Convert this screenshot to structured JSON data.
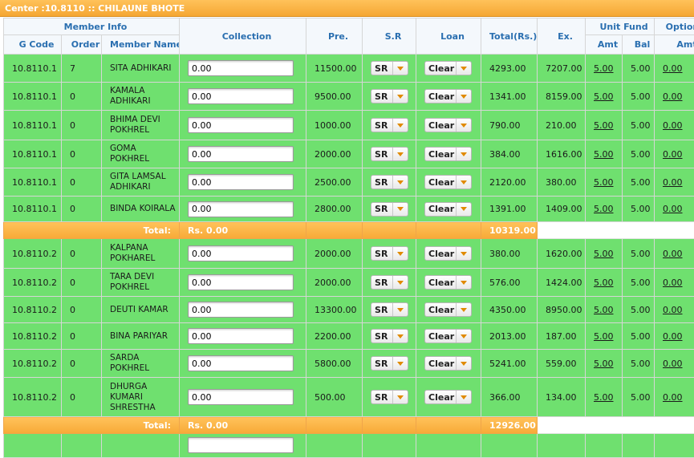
{
  "header": {
    "title": "Center :10.8110 :: CHILAUNE BHOTE"
  },
  "columns": {
    "member_info": "Member Info",
    "g_code": "G Code",
    "order": "Order",
    "member_name": "Member Name",
    "collection": "Collection",
    "pre": "Pre.",
    "sr": "S.R",
    "loan": "Loan",
    "total": "Total(Rs.)",
    "ex": "Ex.",
    "unit_fund": "Unit Fund",
    "amt": "Amt",
    "bal": "Bal",
    "optional": "Optional",
    "opt_amt": "Amt"
  },
  "groups": [
    {
      "rows": [
        {
          "gcode": "10.8110.1",
          "order": "7",
          "name": "SITA ADHIKARI",
          "collection": "0.00",
          "pre": "11500.00",
          "sr": "SR",
          "loan": "Clear",
          "total": "4293.00",
          "ex": "7207.00",
          "uf_amt": "5.00",
          "uf_bal": "5.00",
          "opt_amt": "0.00"
        },
        {
          "gcode": "10.8110.1",
          "order": "0",
          "name": "KAMALA ADHIKARI",
          "collection": "0.00",
          "pre": "9500.00",
          "sr": "SR",
          "loan": "Clear",
          "total": "1341.00",
          "ex": "8159.00",
          "uf_amt": "5.00",
          "uf_bal": "5.00",
          "opt_amt": "0.00"
        },
        {
          "gcode": "10.8110.1",
          "order": "0",
          "name": "BHIMA DEVI POKHREL",
          "collection": "0.00",
          "pre": "1000.00",
          "sr": "SR",
          "loan": "Clear",
          "total": "790.00",
          "ex": "210.00",
          "uf_amt": "5.00",
          "uf_bal": "5.00",
          "opt_amt": "0.00"
        },
        {
          "gcode": "10.8110.1",
          "order": "0",
          "name": "GOMA POKHREL",
          "collection": "0.00",
          "pre": "2000.00",
          "sr": "SR",
          "loan": "Clear",
          "total": "384.00",
          "ex": "1616.00",
          "uf_amt": "5.00",
          "uf_bal": "5.00",
          "opt_amt": "0.00"
        },
        {
          "gcode": "10.8110.1",
          "order": "0",
          "name": "GITA LAMSAL ADHIKARI",
          "collection": "0.00",
          "pre": "2500.00",
          "sr": "SR",
          "loan": "Clear",
          "total": "2120.00",
          "ex": "380.00",
          "uf_amt": "5.00",
          "uf_bal": "5.00",
          "opt_amt": "0.00"
        },
        {
          "gcode": "10.8110.1",
          "order": "0",
          "name": "BINDA KOIRALA",
          "collection": "0.00",
          "pre": "2800.00",
          "sr": "SR",
          "loan": "Clear",
          "total": "1391.00",
          "ex": "1409.00",
          "uf_amt": "5.00",
          "uf_bal": "5.00",
          "opt_amt": "0.00"
        }
      ],
      "total": {
        "label": "Total:",
        "collection": "Rs. 0.00",
        "total": "10319.00"
      }
    },
    {
      "rows": [
        {
          "gcode": "10.8110.2",
          "order": "0",
          "name": "KALPANA POKHAREL",
          "collection": "0.00",
          "pre": "2000.00",
          "sr": "SR",
          "loan": "Clear",
          "total": "380.00",
          "ex": "1620.00",
          "uf_amt": "5.00",
          "uf_bal": "5.00",
          "opt_amt": "0.00"
        },
        {
          "gcode": "10.8110.2",
          "order": "0",
          "name": "TARA DEVI POKHREL",
          "collection": "0.00",
          "pre": "2000.00",
          "sr": "SR",
          "loan": "Clear",
          "total": "576.00",
          "ex": "1424.00",
          "uf_amt": "5.00",
          "uf_bal": "5.00",
          "opt_amt": "0.00"
        },
        {
          "gcode": "10.8110.2",
          "order": "0",
          "name": "DEUTI KAMAR",
          "collection": "0.00",
          "pre": "13300.00",
          "sr": "SR",
          "loan": "Clear",
          "total": "4350.00",
          "ex": "8950.00",
          "uf_amt": "5.00",
          "uf_bal": "5.00",
          "opt_amt": "0.00"
        },
        {
          "gcode": "10.8110.2",
          "order": "0",
          "name": "BINA PARIYAR",
          "collection": "0.00",
          "pre": "2200.00",
          "sr": "SR",
          "loan": "Clear",
          "total": "2013.00",
          "ex": "187.00",
          "uf_amt": "5.00",
          "uf_bal": "5.00",
          "opt_amt": "0.00"
        },
        {
          "gcode": "10.8110.2",
          "order": "0",
          "name": "SARDA POKHREL",
          "collection": "0.00",
          "pre": "5800.00",
          "sr": "SR",
          "loan": "Clear",
          "total": "5241.00",
          "ex": "559.00",
          "uf_amt": "5.00",
          "uf_bal": "5.00",
          "opt_amt": "0.00"
        },
        {
          "gcode": "10.8110.2",
          "order": "0",
          "name": "DHURGA KUMARI SHRESTHA",
          "collection": "0.00",
          "pre": "500.00",
          "sr": "SR",
          "loan": "Clear",
          "total": "366.00",
          "ex": "134.00",
          "uf_amt": "5.00",
          "uf_bal": "5.00",
          "opt_amt": "0.00"
        }
      ],
      "total": {
        "label": "Total:",
        "collection": "Rs. 0.00",
        "total": "12926.00"
      }
    }
  ]
}
